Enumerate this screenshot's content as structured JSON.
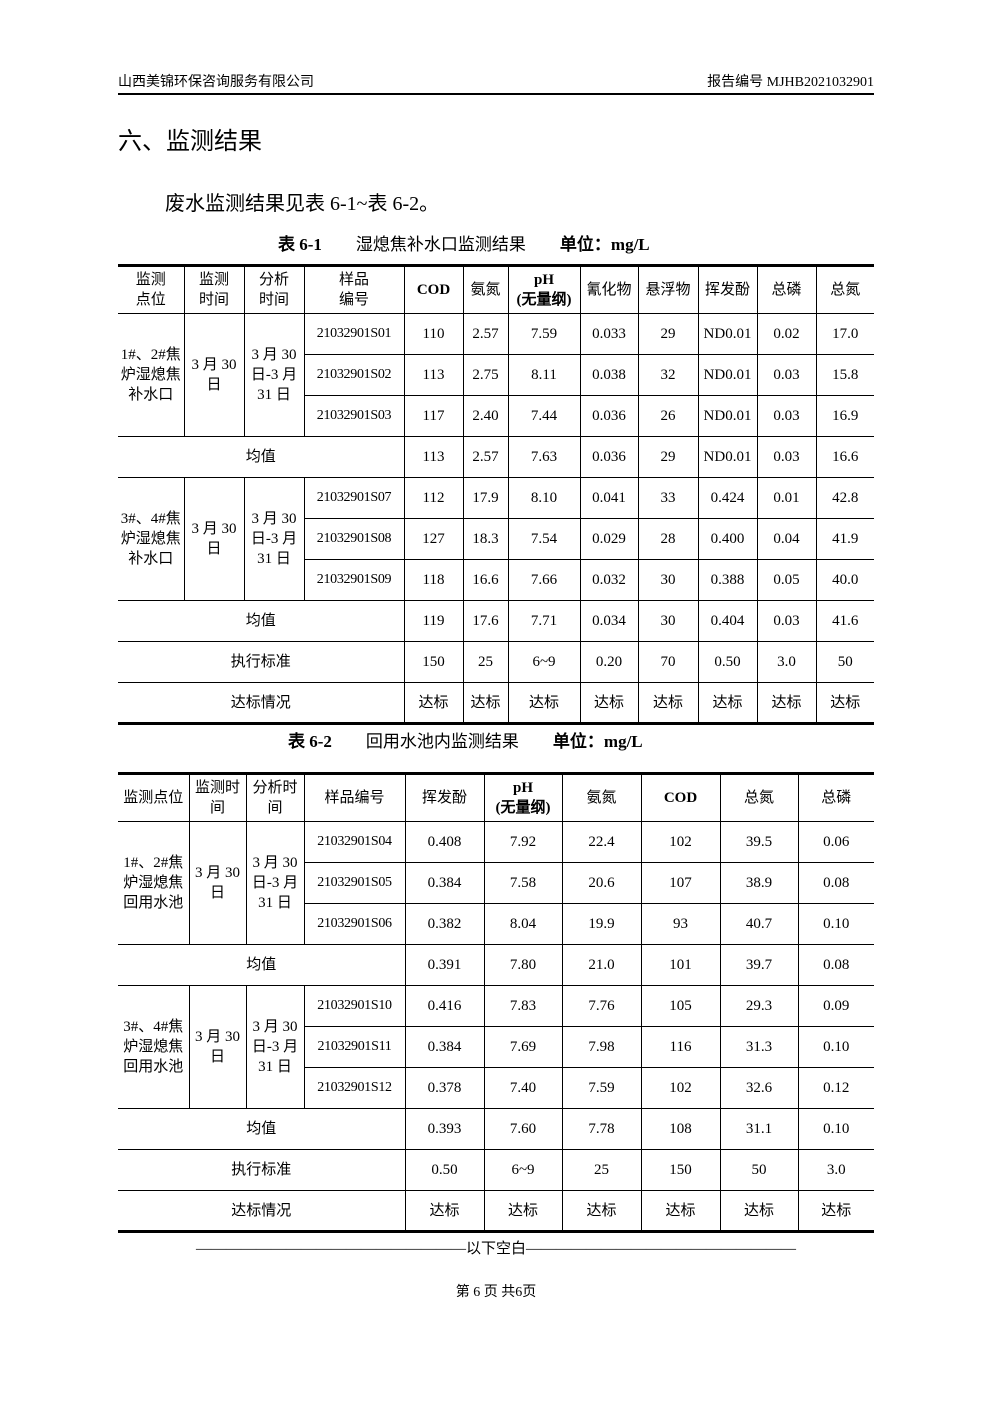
{
  "header": {
    "company": "山西美锦环保咨询服务有限公司",
    "report_no": "报告编号 MJHB2021032901"
  },
  "section_title": "六、监测结果",
  "intro": "废水监测结果见表 6-1~表 6-2。",
  "table1": {
    "caption_no": "表 6-1",
    "caption_title": "湿熄焦补水口监测结果",
    "caption_unit": "单位：mg/L",
    "headers": [
      "监测\n点位",
      "监测\n时间",
      "分析\n时间",
      "样品\n编号",
      "COD",
      "氨氮",
      "pH\n(无量纲)",
      "氰化物",
      "悬浮物",
      "挥发酚",
      "总磷",
      "总氮"
    ],
    "groups": [
      {
        "location": "1#、2#焦炉湿熄焦补水口",
        "date": "3 月 30 日",
        "analysis": "3 月 30 日-3 月 31 日",
        "rows": [
          [
            "21032901S01",
            "110",
            "2.57",
            "7.59",
            "0.033",
            "29",
            "ND0.01",
            "0.02",
            "17.0"
          ],
          [
            "21032901S02",
            "113",
            "2.75",
            "8.11",
            "0.038",
            "32",
            "ND0.01",
            "0.03",
            "15.8"
          ],
          [
            "21032901S03",
            "117",
            "2.40",
            "7.44",
            "0.036",
            "26",
            "ND0.01",
            "0.03",
            "16.9"
          ]
        ],
        "mean_label": "均值",
        "mean": [
          "113",
          "2.57",
          "7.63",
          "0.036",
          "29",
          "ND0.01",
          "0.03",
          "16.6"
        ]
      },
      {
        "location": "3#、4#焦炉湿熄焦补水口",
        "date": "3 月 30 日",
        "analysis": "3 月 30 日-3 月 31 日",
        "rows": [
          [
            "21032901S07",
            "112",
            "17.9",
            "8.10",
            "0.041",
            "33",
            "0.424",
            "0.01",
            "42.8"
          ],
          [
            "21032901S08",
            "127",
            "18.3",
            "7.54",
            "0.029",
            "28",
            "0.400",
            "0.04",
            "41.9"
          ],
          [
            "21032901S09",
            "118",
            "16.6",
            "7.66",
            "0.032",
            "30",
            "0.388",
            "0.05",
            "40.0"
          ]
        ],
        "mean_label": "均值",
        "mean": [
          "119",
          "17.6",
          "7.71",
          "0.034",
          "30",
          "0.404",
          "0.03",
          "41.6"
        ]
      }
    ],
    "standard_label": "执行标准",
    "standard": [
      "150",
      "25",
      "6~9",
      "0.20",
      "70",
      "0.50",
      "3.0",
      "50"
    ],
    "compliance_label": "达标情况",
    "compliance": [
      "达标",
      "达标",
      "达标",
      "达标",
      "达标",
      "达标",
      "达标",
      "达标"
    ]
  },
  "table2": {
    "caption_no": "表 6-2",
    "caption_title": "回用水池内监测结果",
    "caption_unit": "单位：mg/L",
    "headers": [
      "监测点位",
      "监测时\n间",
      "分析时\n间",
      "样品编号",
      "挥发酚",
      "pH\n(无量纲)",
      "氨氮",
      "COD",
      "总氮",
      "总磷"
    ],
    "groups": [
      {
        "location": "1#、2#焦炉湿熄焦回用水池",
        "date": "3 月 30 日",
        "analysis": "3 月 30 日-3 月 31 日",
        "rows": [
          [
            "21032901S04",
            "0.408",
            "7.92",
            "22.4",
            "102",
            "39.5",
            "0.06"
          ],
          [
            "21032901S05",
            "0.384",
            "7.58",
            "20.6",
            "107",
            "38.9",
            "0.08"
          ],
          [
            "21032901S06",
            "0.382",
            "8.04",
            "19.9",
            "93",
            "40.7",
            "0.10"
          ]
        ],
        "mean_label": "均值",
        "mean": [
          "0.391",
          "7.80",
          "21.0",
          "101",
          "39.7",
          "0.08"
        ]
      },
      {
        "location": "3#、4#焦炉湿熄焦回用水池",
        "date": "3 月 30 日",
        "analysis": "3 月 30 日-3 月 31 日",
        "rows": [
          [
            "21032901S10",
            "0.416",
            "7.83",
            "7.76",
            "105",
            "29.3",
            "0.09"
          ],
          [
            "21032901S11",
            "0.384",
            "7.69",
            "7.98",
            "116",
            "31.3",
            "0.10"
          ],
          [
            "21032901S12",
            "0.378",
            "7.40",
            "7.59",
            "102",
            "32.6",
            "0.12"
          ]
        ],
        "mean_label": "均值",
        "mean": [
          "0.393",
          "7.60",
          "7.78",
          "108",
          "31.1",
          "0.10"
        ]
      }
    ],
    "standard_label": "执行标准",
    "standard": [
      "0.50",
      "6~9",
      "25",
      "150",
      "50",
      "3.0"
    ],
    "compliance_label": "达标情况",
    "compliance": [
      "达标",
      "达标",
      "达标",
      "达标",
      "达标",
      "达标"
    ]
  },
  "end_marker": "——————————————————以下空白——————————————————",
  "page_number": "第 6 页  共6页"
}
